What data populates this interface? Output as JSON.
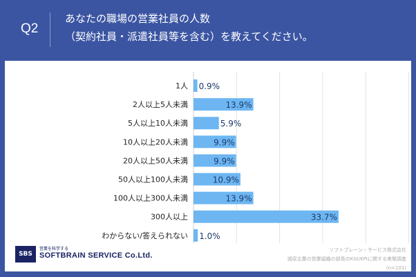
{
  "header": {
    "question": "Q2",
    "title_line1": "あなたの職場の営業社員の人数",
    "title_line2": "（契約社員・派遣社員等を含む）を教えてください。"
  },
  "footer": {
    "logo_mark": "SBS",
    "logo_tagline": "営業を科学する",
    "logo_name": "SOFTBRAIN SERVICE Co.Ltd.",
    "source_company": "ソフトブレーン・サービス株式会社",
    "source_survey": "減収企業の営業組織の部長のKGI/KPIに関する実態調査",
    "sample": "(n=101)"
  },
  "chart_data": {
    "type": "bar",
    "orientation": "horizontal",
    "categories": [
      "1人",
      "2人以上5人未満",
      "5人以上10人未満",
      "10人以上20人未満",
      "20人以上50人未満",
      "50人以上100人未満",
      "100人以上300人未満",
      "300人以上",
      "わからない/答えられない"
    ],
    "values": [
      0.9,
      13.9,
      5.9,
      9.9,
      9.9,
      10.9,
      13.9,
      33.7,
      1.0
    ],
    "labels": [
      "0.9%",
      "13.9%",
      "5.9%",
      "9.9%",
      "9.9%",
      "10.9%",
      "13.9%",
      "33.7%",
      "1.0%"
    ],
    "xlim": [
      0,
      50
    ],
    "grid": true,
    "bar_color": "#6db6f2",
    "header_color": "#3b55a2"
  }
}
